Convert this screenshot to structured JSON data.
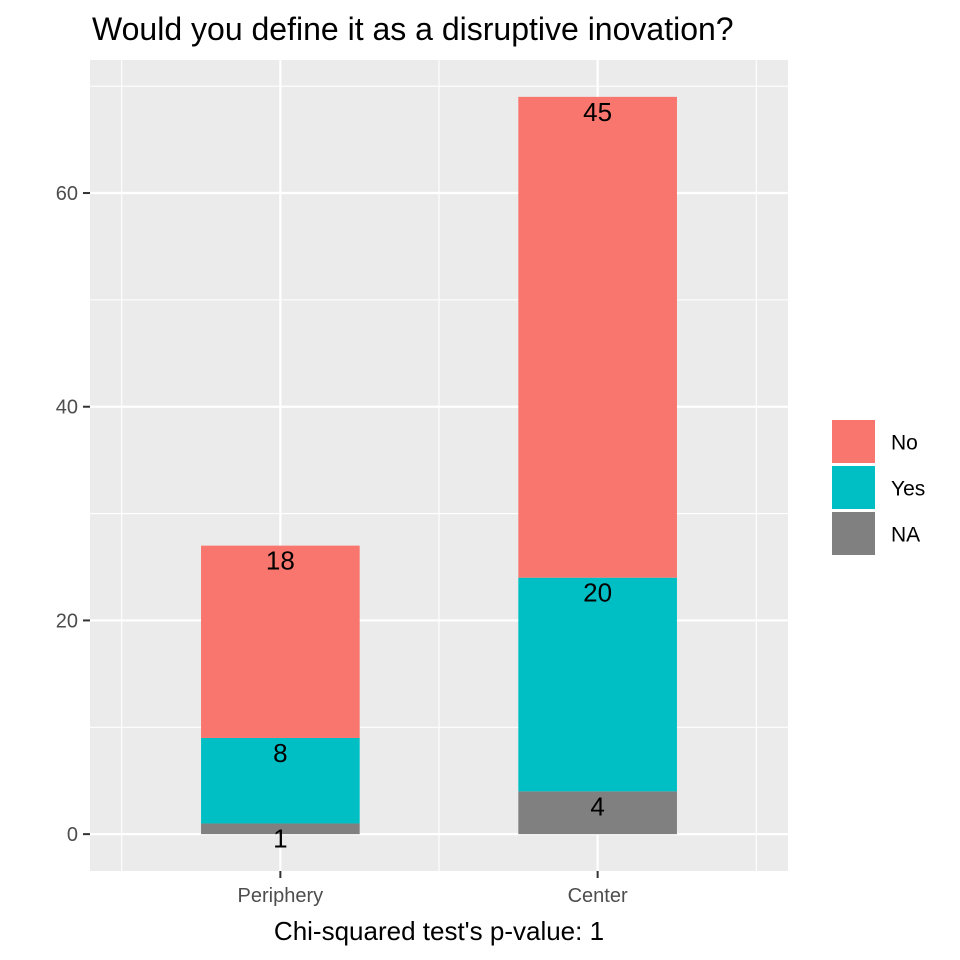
{
  "chart_data": {
    "type": "bar",
    "stacked": true,
    "title": "Would you define it as a disruptive inovation?",
    "xlabel": "Chi-squared test's p-value: 1",
    "ylabel": "",
    "categories": [
      "Periphery",
      "Center"
    ],
    "series": [
      {
        "name": "NA",
        "values": [
          1,
          4
        ],
        "color": "#808080"
      },
      {
        "name": "Yes",
        "values": [
          8,
          20
        ],
        "color": "#00BFC4"
      },
      {
        "name": "No",
        "values": [
          18,
          45
        ],
        "color": "#F8766D"
      }
    ],
    "ylim": [
      -3.45,
      72.45
    ],
    "yticks": [
      0,
      20,
      40,
      60
    ],
    "grid": true,
    "panel_background": "#EBEBEB",
    "legend_position": "right",
    "legend_order": [
      "No",
      "Yes",
      "NA"
    ]
  }
}
